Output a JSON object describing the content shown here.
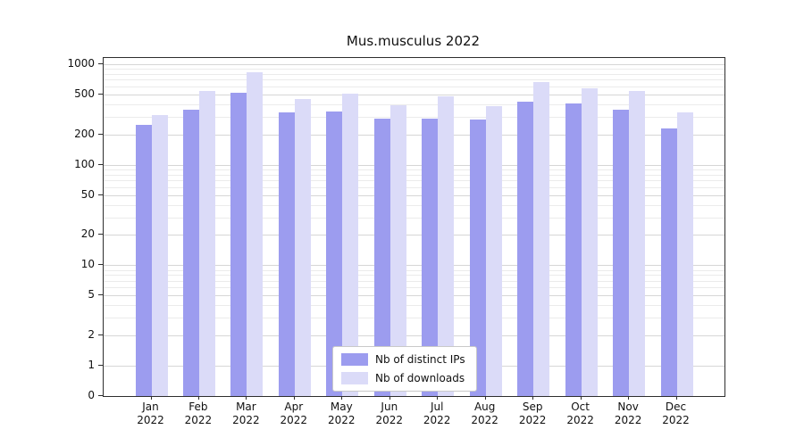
{
  "chart_data": {
    "type": "bar",
    "title": "Mus.musculus 2022",
    "xlabel": "",
    "ylabel": "",
    "categories": [
      "Jan",
      "Feb",
      "Mar",
      "Apr",
      "May",
      "Jun",
      "Jul",
      "Aug",
      "Sep",
      "Oct",
      "Nov",
      "Dec"
    ],
    "year": "2022",
    "series": [
      {
        "name": "Nb of distinct IPs",
        "color": "#9c9cef",
        "values": [
          250,
          350,
          520,
          330,
          340,
          290,
          290,
          280,
          420,
          410,
          350,
          230
        ]
      },
      {
        "name": "Nb of downloads",
        "color": "#dbdbf8",
        "values": [
          310,
          540,
          830,
          450,
          510,
          390,
          480,
          380,
          660,
          570,
          540,
          330
        ]
      }
    ],
    "y_axis": {
      "scale": "symlog",
      "ticks": [
        0,
        1,
        2,
        5,
        10,
        20,
        50,
        100,
        200,
        500,
        1000
      ],
      "minor_ticks": [
        3,
        4,
        6,
        7,
        8,
        9,
        30,
        40,
        60,
        70,
        80,
        90,
        300,
        400,
        600,
        700,
        800,
        900
      ],
      "min": 0,
      "max": 1150
    },
    "legend": {
      "position": "lower center"
    },
    "grid": true,
    "colors": {
      "grid_major": "#d6d6d6",
      "grid_minor": "#ebebeb",
      "spine": "#2e2e2e",
      "text": "#111111"
    }
  }
}
